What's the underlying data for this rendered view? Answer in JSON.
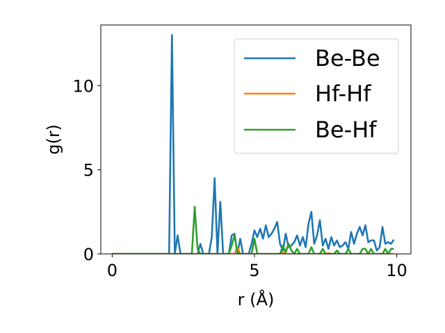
{
  "chart_data": {
    "type": "line",
    "xlabel": "r (Å)",
    "ylabel": "g(r)",
    "xlim": [
      -0.4,
      10.5
    ],
    "ylim": [
      0,
      13.6
    ],
    "xticks": [
      0,
      5,
      10
    ],
    "yticks": [
      0,
      5,
      10
    ],
    "xtick_labels": [
      "0",
      "5",
      "10"
    ],
    "ytick_labels": [
      "0",
      "5",
      "10"
    ],
    "grid": false,
    "legend_position": "top-right",
    "series": [
      {
        "name": "Be-Be",
        "color": "#1f77b4",
        "points": [
          [
            0,
            0
          ],
          [
            2.0,
            0
          ],
          [
            2.1,
            13.0
          ],
          [
            2.2,
            0
          ],
          [
            2.3,
            1.1
          ],
          [
            2.4,
            0
          ],
          [
            3.0,
            0
          ],
          [
            3.1,
            0.6
          ],
          [
            3.2,
            0
          ],
          [
            3.4,
            0
          ],
          [
            3.5,
            1.0
          ],
          [
            3.6,
            4.5
          ],
          [
            3.7,
            0
          ],
          [
            3.8,
            3.1
          ],
          [
            3.9,
            0
          ],
          [
            4.1,
            0
          ],
          [
            4.2,
            1.1
          ],
          [
            4.3,
            1.2
          ],
          [
            4.4,
            0
          ],
          [
            4.5,
            0.9
          ],
          [
            4.6,
            0
          ],
          [
            4.8,
            0
          ],
          [
            4.9,
            0.6
          ],
          [
            5.0,
            1.4
          ],
          [
            5.1,
            1.0
          ],
          [
            5.2,
            1.5
          ],
          [
            5.3,
            0.9
          ],
          [
            5.4,
            1.7
          ],
          [
            5.5,
            1.0
          ],
          [
            5.6,
            1.2
          ],
          [
            5.7,
            1.5
          ],
          [
            5.8,
            1.9
          ],
          [
            5.9,
            0.6
          ],
          [
            6.0,
            0.2
          ],
          [
            6.1,
            1.2
          ],
          [
            6.2,
            0.4
          ],
          [
            6.3,
            0.5
          ],
          [
            6.4,
            0.7
          ],
          [
            6.5,
            1.1
          ],
          [
            6.6,
            0.5
          ],
          [
            6.7,
            1.0
          ],
          [
            6.8,
            0.4
          ],
          [
            6.9,
            1.8
          ],
          [
            7.0,
            2.5
          ],
          [
            7.1,
            0.6
          ],
          [
            7.2,
            1.1
          ],
          [
            7.3,
            2.0
          ],
          [
            7.4,
            0.5
          ],
          [
            7.5,
            0.9
          ],
          [
            7.6,
            0.3
          ],
          [
            7.7,
            1.0
          ],
          [
            7.8,
            0.5
          ],
          [
            7.9,
            0.8
          ],
          [
            8.0,
            0.4
          ],
          [
            8.1,
            0.5
          ],
          [
            8.2,
            0.7
          ],
          [
            8.3,
            0.3
          ],
          [
            8.4,
            1.3
          ],
          [
            8.5,
            0.6
          ],
          [
            8.6,
            1.2
          ],
          [
            8.7,
            1.6
          ],
          [
            8.8,
            1.1
          ],
          [
            8.9,
            1.7
          ],
          [
            9.0,
            0.7
          ],
          [
            9.1,
            0.8
          ],
          [
            9.2,
            0.8
          ],
          [
            9.3,
            0.2
          ],
          [
            9.4,
            0.4
          ],
          [
            9.5,
            1.6
          ],
          [
            9.6,
            0.6
          ],
          [
            9.7,
            0.7
          ],
          [
            9.8,
            0.6
          ],
          [
            9.9,
            0.85
          ]
        ]
      },
      {
        "name": "Hf-Hf",
        "color": "#ff7f0e",
        "points": [
          [
            0,
            0
          ],
          [
            4.3,
            0
          ],
          [
            4.4,
            0.4
          ],
          [
            4.5,
            0
          ],
          [
            5.9,
            0
          ],
          [
            6.0,
            0.1
          ],
          [
            6.1,
            0
          ],
          [
            7.5,
            0
          ],
          [
            7.6,
            0.05
          ],
          [
            7.7,
            0
          ],
          [
            9.9,
            0
          ]
        ]
      },
      {
        "name": "Be-Hf",
        "color": "#2ca02c",
        "points": [
          [
            0,
            0
          ],
          [
            2.8,
            0
          ],
          [
            2.9,
            2.8
          ],
          [
            3.0,
            0.3
          ],
          [
            3.1,
            0
          ],
          [
            4.1,
            0
          ],
          [
            4.2,
            0.5
          ],
          [
            4.3,
            1.1
          ],
          [
            4.4,
            0.1
          ],
          [
            4.5,
            0
          ],
          [
            4.9,
            0
          ],
          [
            5.0,
            0.9
          ],
          [
            5.1,
            0
          ],
          [
            5.9,
            0
          ],
          [
            6.0,
            0.5
          ],
          [
            6.1,
            0.1
          ],
          [
            6.2,
            0.6
          ],
          [
            6.3,
            0.2
          ],
          [
            6.4,
            0
          ],
          [
            6.5,
            0.3
          ],
          [
            6.6,
            0
          ],
          [
            6.9,
            0
          ],
          [
            7.0,
            0.4
          ],
          [
            7.1,
            0
          ],
          [
            7.3,
            0
          ],
          [
            7.4,
            0.3
          ],
          [
            7.5,
            0
          ],
          [
            7.8,
            0
          ],
          [
            7.9,
            0.2
          ],
          [
            8.0,
            0
          ],
          [
            8.2,
            0
          ],
          [
            8.3,
            0.3
          ],
          [
            8.4,
            0
          ],
          [
            8.7,
            0
          ],
          [
            8.8,
            0.3
          ],
          [
            8.9,
            0.3
          ],
          [
            9.0,
            0
          ],
          [
            9.1,
            0.3
          ],
          [
            9.2,
            0
          ],
          [
            9.5,
            0
          ],
          [
            9.6,
            0.3
          ],
          [
            9.7,
            0
          ],
          [
            9.8,
            0.3
          ],
          [
            9.9,
            0.3
          ]
        ]
      }
    ]
  }
}
